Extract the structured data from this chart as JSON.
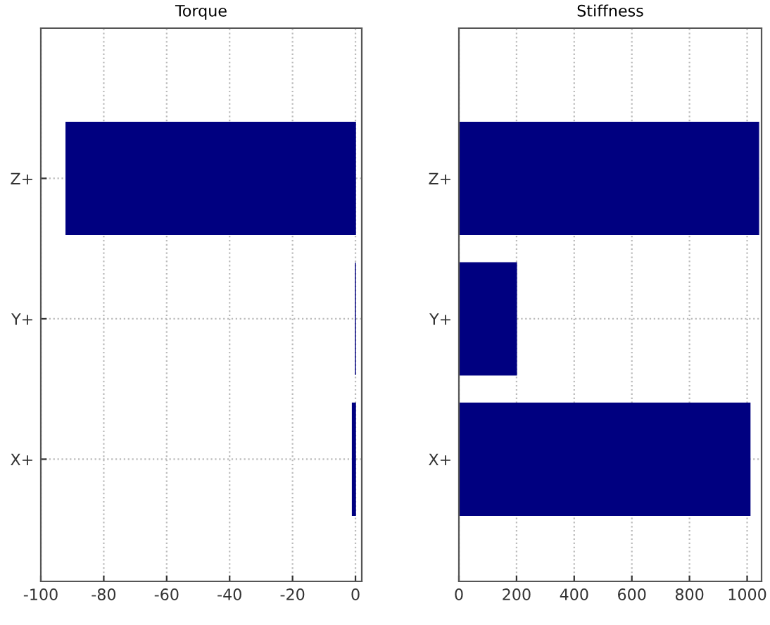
{
  "chart_data": [
    {
      "type": "bar",
      "orientation": "horizontal",
      "title": "Torque",
      "categories": [
        "Z+",
        "Y+",
        "X+"
      ],
      "values": [
        -92,
        0,
        -1
      ],
      "color": "#000080",
      "xlim": [
        -100,
        2
      ],
      "xticks": [
        -100,
        -80,
        -60,
        -40,
        -20,
        0
      ],
      "grid": true,
      "line_style": "dotted"
    },
    {
      "type": "bar",
      "orientation": "horizontal",
      "title": "Stiffness",
      "categories": [
        "Z+",
        "Y+",
        "X+"
      ],
      "values": [
        1040,
        200,
        1010
      ],
      "color": "#000080",
      "xlim": [
        0,
        1050
      ],
      "xticks": [
        0,
        200,
        400,
        600,
        800,
        1000
      ],
      "grid": true,
      "line_style": "dotted"
    }
  ]
}
